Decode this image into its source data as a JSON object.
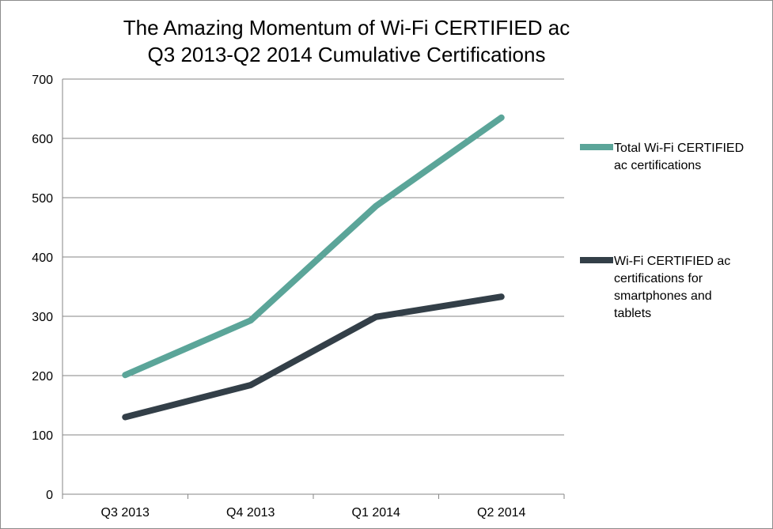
{
  "chart_data": {
    "type": "line",
    "title": "The Amazing Momentum of Wi-Fi CERTIFIED ac",
    "subtitle": "Q3 2013-Q2 2014 Cumulative Certifications",
    "categories": [
      "Q3 2013",
      "Q4 2013",
      "Q1 2014",
      "Q2 2014"
    ],
    "series": [
      {
        "name": "Total Wi-Fi CERTIFIED ac certifications",
        "name_lines": [
          "Total Wi-Fi CERTIFIED",
          "ac certifications"
        ],
        "color": "#5ba599",
        "values": [
          201,
          293,
          486,
          635
        ]
      },
      {
        "name": "Wi-Fi CERTIFIED ac certifications for smartphones and tablets",
        "name_lines": [
          "Wi-Fi CERTIFIED ac",
          "certifications for",
          "smartphones and",
          "tablets"
        ],
        "color": "#333f48",
        "values": [
          130,
          184,
          299,
          333
        ]
      }
    ],
    "y_ticks": [
      "0",
      "100",
      "200",
      "300",
      "400",
      "500",
      "600",
      "700"
    ],
    "ylim": [
      0,
      700
    ],
    "xlabel": "",
    "ylabel": "",
    "grid": true,
    "legend_position": "right"
  }
}
